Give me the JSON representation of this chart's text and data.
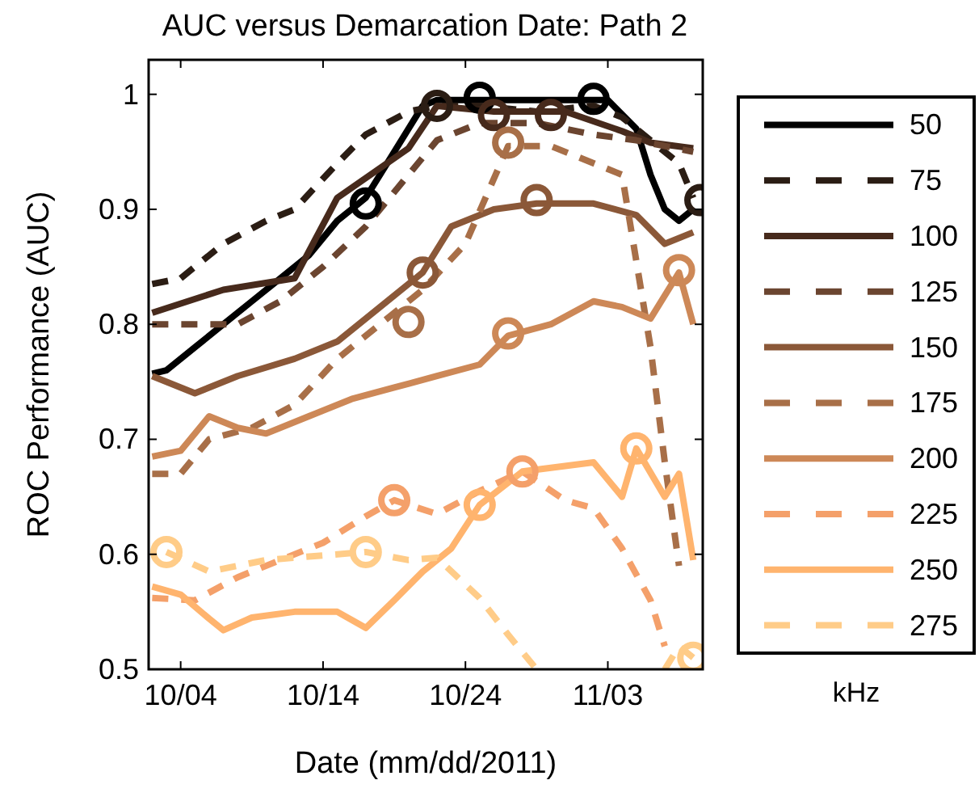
{
  "chart_data": {
    "type": "line",
    "title": "AUC versus Demarcation Date: Path 2",
    "xlabel": "Date (mm/dd/2011)",
    "ylabel": "ROC Performance (AUC)",
    "legend_title": "kHz",
    "legend": "right",
    "xlim": [
      "2011-10-01T18:00",
      "2011-11-09T16:00"
    ],
    "xticks": [
      {
        "value": "2011-10-04",
        "label": "10/04"
      },
      {
        "value": "2011-10-14",
        "label": "10/14"
      },
      {
        "value": "2011-10-24",
        "label": "10/24"
      },
      {
        "value": "2011-11-03",
        "label": "11/03"
      }
    ],
    "ylim": [
      0.5,
      1.03
    ],
    "yticks": [
      0.5,
      0.6,
      0.7,
      0.8,
      0.9,
      1
    ],
    "series": [
      {
        "name": "50",
        "color": "#000000",
        "line_style": "solid",
        "x": [
          "2011-10-02",
          "2011-10-03",
          "2011-10-05",
          "2011-10-07",
          "2011-10-09",
          "2011-10-11",
          "2011-10-13",
          "2011-10-15",
          "2011-10-17",
          "2011-10-19",
          "2011-10-21",
          "2011-10-22",
          "2011-10-26",
          "2011-10-30",
          "2011-11-03",
          "2011-11-05",
          "2011-11-06",
          "2011-11-07",
          "2011-11-08",
          "2011-11-09"
        ],
        "values": [
          0.757,
          0.76,
          0.78,
          0.8,
          0.82,
          0.84,
          0.86,
          0.89,
          0.91,
          0.95,
          0.99,
          0.995,
          0.995,
          0.995,
          0.995,
          0.97,
          0.93,
          0.9,
          0.89,
          0.9
        ]
      },
      {
        "name": "75",
        "color": "#2b1d14",
        "line_style": "dashed",
        "x": [
          "2011-10-02",
          "2011-10-04",
          "2011-10-07",
          "2011-10-10",
          "2011-10-12",
          "2011-10-15",
          "2011-10-17",
          "2011-10-20",
          "2011-10-22",
          "2011-10-25",
          "2011-10-29",
          "2011-11-02",
          "2011-11-04",
          "2011-11-06",
          "2011-11-08",
          "2011-11-09"
        ],
        "values": [
          0.835,
          0.84,
          0.87,
          0.89,
          0.9,
          0.94,
          0.965,
          0.985,
          0.99,
          0.99,
          0.985,
          0.99,
          0.98,
          0.96,
          0.94,
          0.91
        ]
      },
      {
        "name": "100",
        "color": "#472a1c",
        "line_style": "solid",
        "x": [
          "2011-10-02",
          "2011-10-07",
          "2011-10-12",
          "2011-10-15",
          "2011-10-20",
          "2011-10-22",
          "2011-10-26",
          "2011-10-31",
          "2011-11-04",
          "2011-11-06",
          "2011-11-09"
        ],
        "values": [
          0.81,
          0.83,
          0.84,
          0.91,
          0.953,
          0.99,
          0.985,
          0.985,
          0.968,
          0.958,
          0.953
        ]
      },
      {
        "name": "125",
        "color": "#6b4530",
        "line_style": "dashed",
        "x": [
          "2011-10-02",
          "2011-10-05",
          "2011-10-08",
          "2011-10-11",
          "2011-10-14",
          "2011-10-17",
          "2011-10-20",
          "2011-10-22",
          "2011-10-25",
          "2011-10-29",
          "2011-11-02",
          "2011-11-05",
          "2011-11-07",
          "2011-11-09"
        ],
        "values": [
          0.8,
          0.8,
          0.8,
          0.82,
          0.85,
          0.885,
          0.93,
          0.96,
          0.975,
          0.975,
          0.965,
          0.96,
          0.955,
          0.95
        ]
      },
      {
        "name": "150",
        "color": "#8b5838",
        "line_style": "solid",
        "x": [
          "2011-10-02",
          "2011-10-05",
          "2011-10-08",
          "2011-10-12",
          "2011-10-15",
          "2011-10-18",
          "2011-10-21",
          "2011-10-23",
          "2011-10-26",
          "2011-10-29",
          "2011-11-02",
          "2011-11-05",
          "2011-11-07",
          "2011-11-09"
        ],
        "values": [
          0.755,
          0.74,
          0.755,
          0.77,
          0.785,
          0.815,
          0.845,
          0.885,
          0.9,
          0.905,
          0.905,
          0.895,
          0.87,
          0.88
        ]
      },
      {
        "name": "175",
        "color": "#a86f48",
        "line_style": "dashed",
        "x": [
          "2011-10-02",
          "2011-10-04",
          "2011-10-06",
          "2011-10-09",
          "2011-10-12",
          "2011-10-15",
          "2011-10-18",
          "2011-10-21",
          "2011-10-24",
          "2011-10-27",
          "2011-10-30",
          "2011-11-02",
          "2011-11-04",
          "2011-11-06",
          "2011-11-07",
          "2011-11-08"
        ],
        "values": [
          0.67,
          0.67,
          0.7,
          0.71,
          0.73,
          0.77,
          0.8,
          0.83,
          0.87,
          0.955,
          0.955,
          0.94,
          0.93,
          0.78,
          0.68,
          0.59
        ]
      },
      {
        "name": "200",
        "color": "#cd8857",
        "line_style": "solid",
        "x": [
          "2011-10-02",
          "2011-10-04",
          "2011-10-06",
          "2011-10-08",
          "2011-10-10",
          "2011-10-13",
          "2011-10-16",
          "2011-10-19",
          "2011-10-22",
          "2011-10-25",
          "2011-10-27",
          "2011-10-30",
          "2011-11-02",
          "2011-11-04",
          "2011-11-06",
          "2011-11-08",
          "2011-11-09"
        ],
        "values": [
          0.685,
          0.69,
          0.72,
          0.71,
          0.705,
          0.72,
          0.735,
          0.745,
          0.755,
          0.765,
          0.79,
          0.8,
          0.82,
          0.815,
          0.805,
          0.845,
          0.8
        ]
      },
      {
        "name": "225",
        "color": "#f4a06a",
        "line_style": "dashed",
        "x": [
          "2011-10-02",
          "2011-10-05",
          "2011-10-08",
          "2011-10-11",
          "2011-10-14",
          "2011-10-17",
          "2011-10-19",
          "2011-10-22",
          "2011-10-25",
          "2011-10-28",
          "2011-10-31",
          "2011-11-02",
          "2011-11-04",
          "2011-11-06",
          "2011-11-07"
        ],
        "values": [
          0.562,
          0.56,
          0.58,
          0.595,
          0.61,
          0.633,
          0.647,
          0.635,
          0.655,
          0.672,
          0.647,
          0.64,
          0.605,
          0.56,
          0.52
        ]
      },
      {
        "name": "250",
        "color": "#ffb46e",
        "line_style": "solid",
        "x": [
          "2011-10-02",
          "2011-10-04",
          "2011-10-06",
          "2011-10-07",
          "2011-10-09",
          "2011-10-12",
          "2011-10-15",
          "2011-10-17",
          "2011-10-19",
          "2011-10-21",
          "2011-10-23",
          "2011-10-25",
          "2011-10-28",
          "2011-11-02",
          "2011-11-04",
          "2011-11-05",
          "2011-11-07",
          "2011-11-08",
          "2011-11-09"
        ],
        "values": [
          0.572,
          0.565,
          0.544,
          0.534,
          0.545,
          0.55,
          0.55,
          0.536,
          0.56,
          0.585,
          0.605,
          0.643,
          0.672,
          0.68,
          0.65,
          0.692,
          0.65,
          0.67,
          0.595
        ]
      },
      {
        "name": "275",
        "color": "#ffcc88",
        "line_style": "dashed",
        "x": [
          "2011-10-03",
          "2011-10-06",
          "2011-10-10",
          "2011-10-17",
          "2011-10-20",
          "2011-10-22",
          "2011-10-25",
          "2011-10-27",
          "2011-10-29",
          "2011-11-03",
          "2011-11-07",
          "2011-11-08",
          "2011-11-09"
        ],
        "values": [
          0.602,
          0.585,
          0.595,
          0.602,
          0.595,
          0.597,
          0.562,
          0.53,
          0.5,
          null,
          0.5,
          0.52,
          0.51
        ]
      },
      {
        "type": "scatter",
        "marker": "circle",
        "x": [
          "2011-10-17",
          "2011-10-25",
          "2011-11-02",
          "2011-10-22",
          "2011-11-09T12:00",
          "2011-10-26",
          "2011-10-30",
          "2011-10-21",
          "2011-10-29",
          "2011-10-20",
          "2011-10-27",
          "2011-10-27",
          "2011-11-08",
          "2011-10-19",
          "2011-10-28",
          "2011-10-25",
          "2011-11-05",
          "2011-10-03",
          "2011-10-17",
          "2011-11-09"
        ],
        "values": [
          0.905,
          0.997,
          0.996,
          0.99,
          0.908,
          0.982,
          0.982,
          0.845,
          0.908,
          0.802,
          0.958,
          0.792,
          0.847,
          0.647,
          0.672,
          0.643,
          0.692,
          0.602,
          0.602,
          0.51
        ],
        "colors": [
          "#000000",
          "#000000",
          "#000000",
          "#2b1d14",
          "#2b1d14",
          "#472a1c",
          "#472a1c",
          "#8b5838",
          "#8b5838",
          "#a86f48",
          "#a86f48",
          "#cd8857",
          "#cd8857",
          "#f4a06a",
          "#f4a06a",
          "#ffb46e",
          "#ffb46e",
          "#ffcc88",
          "#ffcc88",
          "#ffcc88"
        ]
      }
    ]
  }
}
